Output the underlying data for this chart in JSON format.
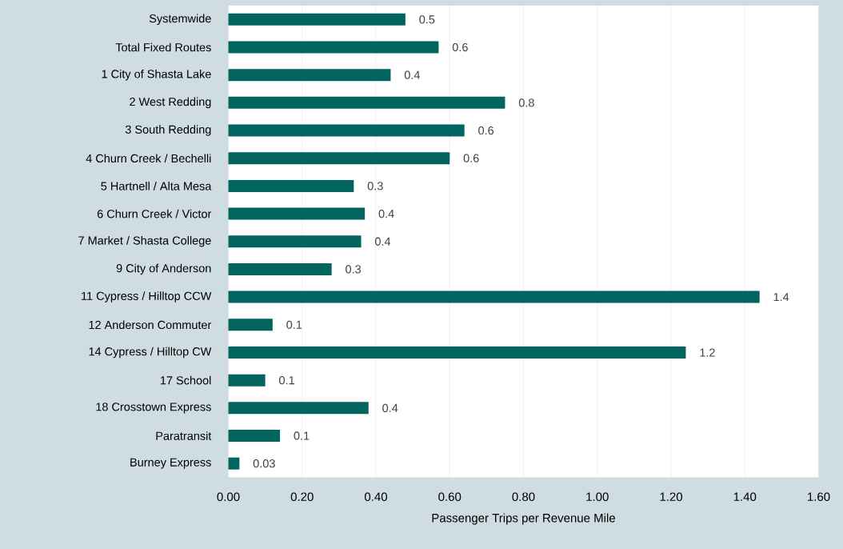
{
  "chart_data": {
    "type": "bar",
    "orientation": "horizontal",
    "categories": [
      "Systemwide",
      "Total Fixed Routes",
      "1 City of Shasta Lake",
      "2 West Redding",
      "3 South Redding",
      "4 Churn Creek / Bechelli",
      "5 Hartnell / Alta Mesa",
      "6 Churn Creek / Victor",
      "7 Market / Shasta College",
      "9 City of Anderson",
      "11 Cypress / Hilltop CCW",
      "12 Anderson Commuter",
      "14 Cypress / Hilltop CW",
      "17 School",
      "18 Crosstown Express",
      "Paratransit",
      "Burney Express"
    ],
    "values": [
      0.48,
      0.57,
      0.44,
      0.75,
      0.64,
      0.6,
      0.34,
      0.37,
      0.36,
      0.28,
      1.44,
      0.12,
      1.24,
      0.1,
      0.38,
      0.14,
      0.03
    ],
    "value_labels": [
      "0.5",
      "0.6",
      "0.4",
      "0.8",
      "0.6",
      "0.6",
      "0.3",
      "0.4",
      "0.4",
      "0.3",
      "1.4",
      "0.1",
      "1.2",
      "0.1",
      "0.4",
      "0.1",
      "0.03"
    ],
    "color": "#03655f",
    "xlabel": "Passenger Trips per Revenue Mile",
    "xlim": [
      0,
      1.6
    ],
    "xticks": [
      {
        "value": 0,
        "label": "0.00"
      },
      {
        "value": 0.2,
        "label": "0.20"
      },
      {
        "value": 0.4,
        "label": "0.40"
      },
      {
        "value": 0.6,
        "label": "0.60"
      },
      {
        "value": 0.8,
        "label": "0.80"
      },
      {
        "value": 1.0,
        "label": "1.00"
      },
      {
        "value": 1.2,
        "label": "1.20"
      },
      {
        "value": 1.4,
        "label": "1.40"
      },
      {
        "value": 1.6,
        "label": "1.60"
      }
    ],
    "grid": "x"
  }
}
